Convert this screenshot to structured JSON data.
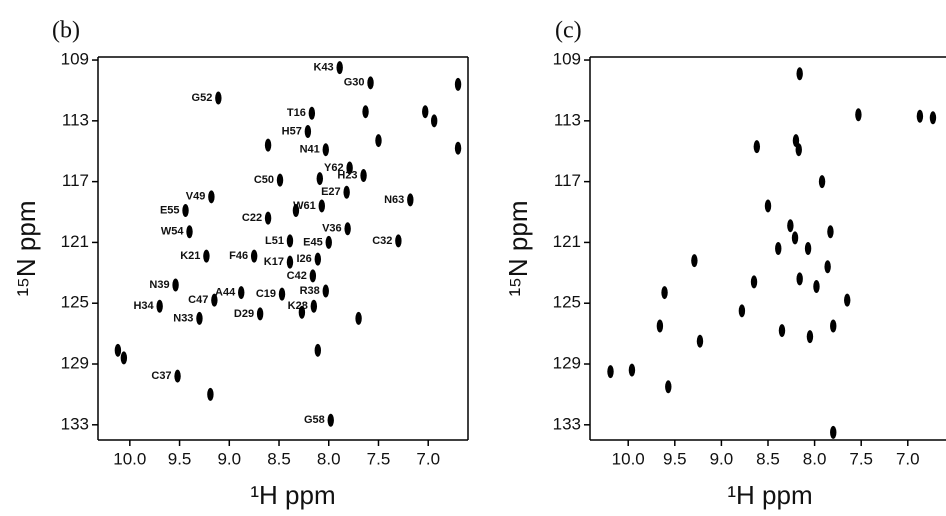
{
  "chart_data": [
    {
      "type": "scatter",
      "panel_label": "(b)",
      "xlabel": "¹H ppm",
      "ylabel": "¹⁵N ppm",
      "xlim": [
        10.32,
        6.6
      ],
      "ylim": [
        108.8,
        134
      ],
      "xticks": [
        {
          "value": 10,
          "label": "10.0"
        },
        9.5,
        {
          "value": 9,
          "label": "9.0"
        },
        8.5,
        {
          "value": 8,
          "label": "8.0"
        },
        7.5,
        {
          "value": 7,
          "label": "7.0"
        }
      ],
      "yticks": [
        109,
        113,
        117,
        121,
        125,
        129,
        133
      ],
      "color": "#000000",
      "x": [
        7.89,
        7.58,
        9.11,
        8.17,
        8.21,
        8.03,
        7.79,
        7.65,
        7.82,
        8.49,
        9.18,
        9.44,
        8.07,
        7.18,
        8.61,
        9.4,
        7.81,
        7.3,
        8.39,
        8.0,
        9.23,
        8.75,
        8.11,
        8.39,
        8.88,
        8.16,
        9.54,
        9.15,
        8.47,
        8.03,
        9.7,
        9.3,
        8.69,
        8.15,
        9.52,
        7.98,
        10.12,
        10.06,
        9.19,
        6.94,
        7.03,
        6.7,
        8.61,
        7.5,
        6.7,
        7.63,
        8.09,
        8.33,
        8.11,
        7.7,
        8.27
      ],
      "values": [
        109.5,
        110.5,
        111.5,
        112.5,
        113.7,
        114.9,
        116.1,
        116.6,
        117.7,
        116.9,
        118,
        118.9,
        118.6,
        118.2,
        119.4,
        120.3,
        120.1,
        120.9,
        120.9,
        121,
        121.9,
        121.9,
        122.1,
        122.3,
        124.3,
        123.2,
        123.8,
        124.8,
        124.4,
        124.2,
        125.2,
        126,
        125.7,
        125.2,
        129.8,
        132.7,
        128.1,
        128.6,
        131,
        113,
        112.4,
        110.6,
        114.6,
        114.3,
        114.8,
        112.4,
        116.8,
        118.9,
        128.1,
        126,
        125.6
      ],
      "point_labels": [
        "K43",
        "G30",
        "G52",
        "T16",
        "H57",
        "N41",
        "Y62",
        "H23",
        "E27",
        "C50",
        "V49",
        "E55",
        "W61",
        "N63",
        "C22",
        "W54",
        "V36",
        "C32",
        "L51",
        "E45",
        "K21",
        "F46",
        "I26",
        "K17",
        "A44",
        "C42",
        "N39",
        "C47",
        "C19",
        "R38",
        "H34",
        "N33",
        "D29",
        "K28",
        "C37",
        "G58",
        null,
        null,
        null,
        null,
        null,
        null,
        null,
        null,
        null,
        null,
        null,
        null,
        null,
        null,
        null
      ]
    },
    {
      "type": "scatter",
      "panel_label": "(c)",
      "xlabel": "¹H ppm",
      "ylabel": "¹⁵N ppm",
      "xlim": [
        10.41,
        6.59
      ],
      "ylim": [
        108.8,
        134
      ],
      "xticks": [
        {
          "value": 10,
          "label": "10.0"
        },
        9.5,
        {
          "value": 9,
          "label": "9.0"
        },
        8.5,
        {
          "value": 8,
          "label": "8.0"
        },
        7.5,
        {
          "value": 7,
          "label": "7.0"
        }
      ],
      "yticks": [
        109,
        113,
        117,
        121,
        125,
        129,
        133
      ],
      "color": "#000000",
      "x": [
        8.16,
        9.96,
        10.19,
        9.57,
        8.62,
        8.17,
        7.92,
        8.26,
        8.39,
        8.21,
        8.07,
        7.83,
        9.29,
        9.61,
        8.16,
        7.86,
        7.98,
        7.65,
        8.05,
        7.8,
        8.35,
        7.8,
        7.53,
        6.87,
        6.73,
        8.65,
        8.78,
        9.23,
        9.66,
        8.5,
        8.2
      ],
      "values": [
        109.9,
        129.4,
        129.5,
        130.5,
        114.7,
        114.9,
        117,
        119.9,
        121.4,
        120.7,
        121.4,
        120.3,
        122.2,
        124.3,
        123.4,
        122.6,
        123.9,
        124.8,
        127.2,
        126.5,
        126.8,
        133.5,
        112.6,
        112.7,
        112.8,
        123.6,
        125.5,
        127.5,
        126.5,
        118.6,
        114.3
      ]
    }
  ]
}
